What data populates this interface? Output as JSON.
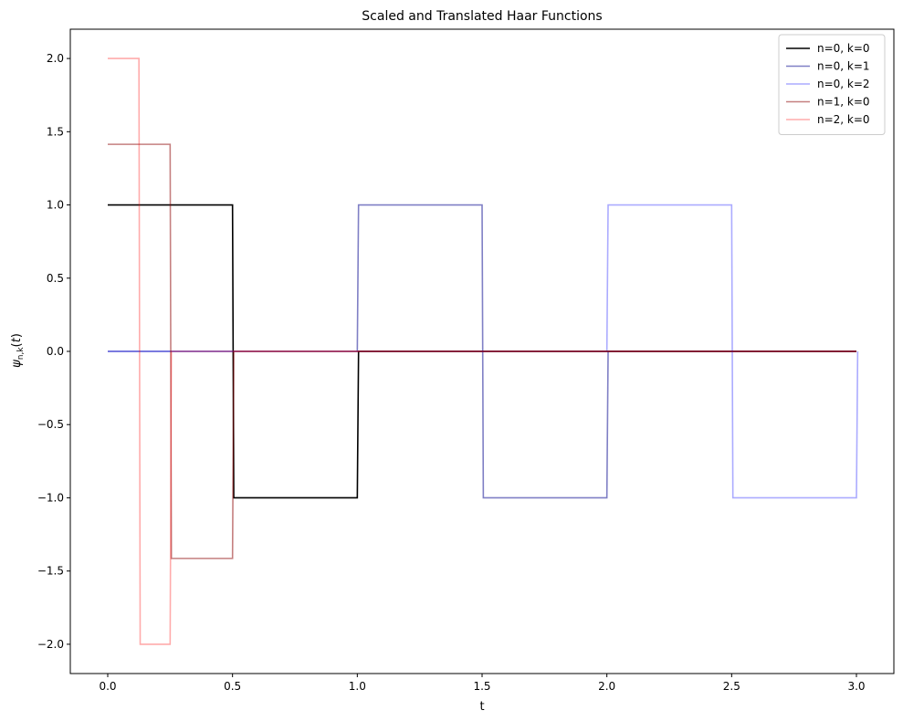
{
  "chart_data": {
    "type": "line",
    "title": "Scaled and Translated Haar Functions",
    "xlabel": "t",
    "ylabel": "ψn,k(t)",
    "xlim": [
      -0.15,
      3.15
    ],
    "ylim": [
      -2.2,
      2.2
    ],
    "xticks": [
      0.0,
      0.5,
      1.0,
      1.5,
      2.0,
      2.5,
      3.0
    ],
    "xtick_labels": [
      "0.0",
      "0.5",
      "1.0",
      "1.5",
      "2.0",
      "2.5",
      "3.0"
    ],
    "yticks": [
      -2.0,
      -1.5,
      -1.0,
      -0.5,
      0.0,
      0.5,
      1.0,
      1.5,
      2.0
    ],
    "ytick_labels": [
      "−2.0",
      "−1.5",
      "−1.0",
      "−0.5",
      "0.0",
      "0.5",
      "1.0",
      "1.5",
      "2.0"
    ],
    "grid": false,
    "legend_position": "top-right",
    "series": [
      {
        "name": "n=0, k=0",
        "color": "#000000",
        "opacity": 1.0,
        "x": [
          0.0,
          0.5,
          0.505,
          1.0,
          1.005,
          3.0
        ],
        "y": [
          1.0,
          1.0,
          -1.0,
          -1.0,
          0.0,
          0.0
        ]
      },
      {
        "name": "n=0, k=1",
        "color": "#00008b",
        "opacity": 0.5,
        "x": [
          0.0,
          1.0,
          1.005,
          1.5,
          1.505,
          2.0,
          2.005,
          3.0
        ],
        "y": [
          0.0,
          0.0,
          1.0,
          1.0,
          -1.0,
          -1.0,
          0.0,
          0.0
        ]
      },
      {
        "name": "n=0, k=2",
        "color": "#0000ff",
        "opacity": 0.33,
        "x": [
          0.0,
          2.0,
          2.005,
          2.5,
          2.505,
          3.0,
          3.005
        ],
        "y": [
          0.0,
          0.0,
          1.0,
          1.0,
          -1.0,
          -1.0,
          0.0
        ]
      },
      {
        "name": "n=1, k=0",
        "color": "#8b0000",
        "opacity": 0.5,
        "x": [
          0.0,
          0.25,
          0.255,
          0.5,
          0.505,
          3.0
        ],
        "y": [
          1.414,
          1.414,
          -1.414,
          -1.414,
          0.0,
          0.0
        ]
      },
      {
        "name": "n=2, k=0",
        "color": "#ff0000",
        "opacity": 0.33,
        "x": [
          0.0,
          0.125,
          0.13,
          0.25,
          0.255,
          3.0
        ],
        "y": [
          2.0,
          2.0,
          -2.0,
          -2.0,
          0.0,
          0.0
        ]
      }
    ]
  }
}
